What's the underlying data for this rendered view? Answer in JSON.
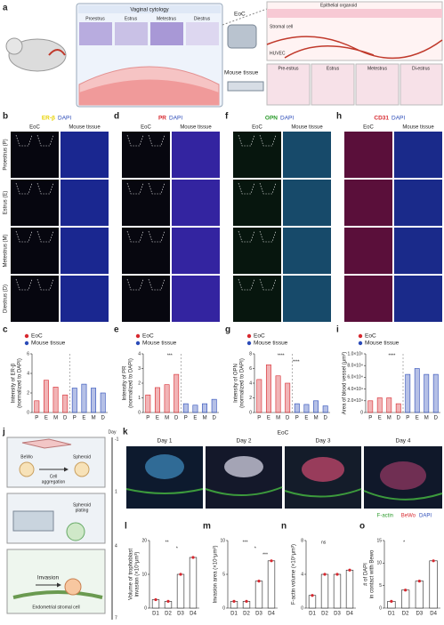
{
  "panel_letters": [
    "a",
    "b",
    "c",
    "d",
    "e",
    "f",
    "g",
    "h",
    "i",
    "j",
    "k",
    "l",
    "m",
    "n",
    "o"
  ],
  "figure_a": {
    "cytology_title": "Vaginal cytology",
    "phases": [
      "Proestrus",
      "Estrus",
      "Metestrus",
      "Diestrus"
    ],
    "eoc": "EoC",
    "mouse_tissue": "Mouse tissue",
    "cell_labels": [
      "Epithelial organoid",
      "Stromal cell",
      "HUVEC"
    ],
    "tissue_phases": [
      "Pre-estrus",
      "Estrus",
      "Metestrus",
      "Di-estrus"
    ]
  },
  "figure_bdfh": {
    "row_labels": [
      "Proestrus (P)",
      "Estrus (E)",
      "Metestrus (M)",
      "Diestrus (D)"
    ],
    "columns": [
      {
        "stain": "ER-β",
        "counter": "DAPI",
        "left": "EoC",
        "right": "Mouse tissue"
      },
      {
        "stain": "PR",
        "counter": "DAPI",
        "left": "EoC",
        "right": "Mouse tissue"
      },
      {
        "stain": "OPN",
        "counter": "DAPI",
        "left": "EoC",
        "right": "Mouse tissue"
      },
      {
        "stain": "CD31",
        "counter": "DAPI",
        "left": "EoC",
        "right": "Mouse tissue"
      }
    ]
  },
  "figure_j": {
    "day_title": "Day",
    "days": [
      "-1",
      "1",
      "4",
      "7"
    ],
    "bewo": "BeWo",
    "spheroid": "Spheroid",
    "aggregation": [
      "Cell",
      "aggregation"
    ],
    "plating": [
      "Spheroid",
      "plating"
    ],
    "invasion": "Invasion",
    "stromal": "Endometrial stromal cell"
  },
  "figure_k": {
    "title": "EoC",
    "days": [
      "Day 1",
      "Day 2",
      "Day 3",
      "Day 4"
    ],
    "legend": [
      "F-actin",
      "BeWo",
      "DAPI"
    ]
  },
  "chart_data": [
    {
      "type": "bar",
      "ylabel": [
        "Intensity of ER-β",
        "(normalized to DAPI)"
      ],
      "categories": [
        "P",
        "E",
        "M",
        "D"
      ],
      "series": [
        {
          "name": "EoC",
          "color": "#d7282f",
          "values": [
            1.2,
            3.3,
            2.6,
            1.8
          ]
        },
        {
          "name": "Mouse tissue",
          "color": "#2b4bb8",
          "values": [
            2.5,
            2.9,
            2.5,
            2.0
          ]
        }
      ],
      "ylim": [
        0,
        6
      ],
      "yticks": [
        0,
        2,
        4,
        6
      ],
      "annotations": []
    },
    {
      "type": "bar",
      "ylabel": [
        "Intensity of PR",
        "(normalized to DAPI)"
      ],
      "categories": [
        "P",
        "E",
        "M",
        "D"
      ],
      "series": [
        {
          "name": "EoC",
          "color": "#d7282f",
          "values": [
            1.2,
            1.7,
            1.9,
            2.6
          ]
        },
        {
          "name": "Mouse tissue",
          "color": "#2b4bb8",
          "values": [
            0.6,
            0.5,
            0.6,
            0.9
          ]
        }
      ],
      "ylim": [
        0,
        4
      ],
      "yticks": [
        0,
        1,
        2,
        3,
        4
      ],
      "annotations": [
        "***"
      ]
    },
    {
      "type": "bar",
      "ylabel": [
        "Intensity of OPN",
        "(normalized to DAPI)"
      ],
      "categories": [
        "P",
        "E",
        "M",
        "D"
      ],
      "series": [
        {
          "name": "EoC",
          "color": "#d7282f",
          "values": [
            4.5,
            6.5,
            5.0,
            4.0
          ]
        },
        {
          "name": "Mouse tissue",
          "color": "#2b4bb8",
          "values": [
            1.2,
            1.1,
            1.6,
            0.9
          ]
        }
      ],
      "ylim": [
        0,
        8
      ],
      "yticks": [
        0,
        2,
        4,
        6,
        8
      ],
      "annotations": [
        "****",
        "****"
      ]
    },
    {
      "type": "bar",
      "ylabel": [
        "Area of blood vessel (μm²)"
      ],
      "categories": [
        "P",
        "E",
        "M",
        "D"
      ],
      "series": [
        {
          "name": "EoC",
          "color": "#d7282f",
          "values": [
            20000,
            25000,
            25000,
            15000
          ]
        },
        {
          "name": "Mouse tissue",
          "color": "#2b4bb8",
          "values": [
            65000,
            75000,
            65000,
            65000
          ]
        }
      ],
      "ylim": [
        0,
        100000
      ],
      "yticks": [
        {
          "value": 0,
          "label": "0"
        },
        {
          "value": 20000,
          "label": "2.0×10⁴"
        },
        {
          "value": 40000,
          "label": "4.0×10⁴"
        },
        {
          "value": 60000,
          "label": "6.0×10⁴"
        },
        {
          "value": 80000,
          "label": "8.0×10⁴"
        },
        {
          "value": 100000,
          "label": "1.0×10⁵"
        }
      ],
      "annotations": [
        "****"
      ]
    },
    {
      "type": "bar",
      "ylabel": [
        "Volume of trophoblast",
        "invasion (×10⁵μm³)"
      ],
      "categories": [
        "D1",
        "D2",
        "D3",
        "D4"
      ],
      "values": [
        2.5,
        2.0,
        10,
        15
      ],
      "color": "#d7282f",
      "ylim": [
        0,
        20
      ],
      "yticks": [
        0,
        10,
        20
      ],
      "annotations": [
        "**",
        "*"
      ]
    },
    {
      "type": "bar",
      "ylabel": [
        "Invasion area (×10⁴μm²)"
      ],
      "categories": [
        "D1",
        "D2",
        "D3",
        "D4"
      ],
      "values": [
        1,
        1,
        4,
        7
      ],
      "color": "#d7282f",
      "ylim": [
        0,
        10
      ],
      "yticks": [
        0,
        5,
        10
      ],
      "annotations": [
        "***",
        "*",
        "***"
      ]
    },
    {
      "type": "bar",
      "ylabel": [
        "F-actin volume (×10⁵μm³)"
      ],
      "categories": [
        "D1",
        "D2",
        "D3",
        "D4"
      ],
      "values": [
        1.5,
        4,
        4,
        4.5
      ],
      "color": "#d7282f",
      "ylim": [
        0,
        8
      ],
      "yticks": [
        0,
        4,
        8
      ],
      "annotations": [
        "ns"
      ]
    },
    {
      "type": "bar",
      "ylabel": [
        "# of DAPI",
        "in contact with Bewo"
      ],
      "categories": [
        "D1",
        "D2",
        "D3",
        "D4"
      ],
      "values": [
        1.5,
        4,
        6,
        10.5
      ],
      "color": "#d7282f",
      "ylim": [
        0,
        15
      ],
      "yticks": [
        0,
        5,
        10,
        15
      ],
      "annotations": [
        "*"
      ]
    }
  ]
}
